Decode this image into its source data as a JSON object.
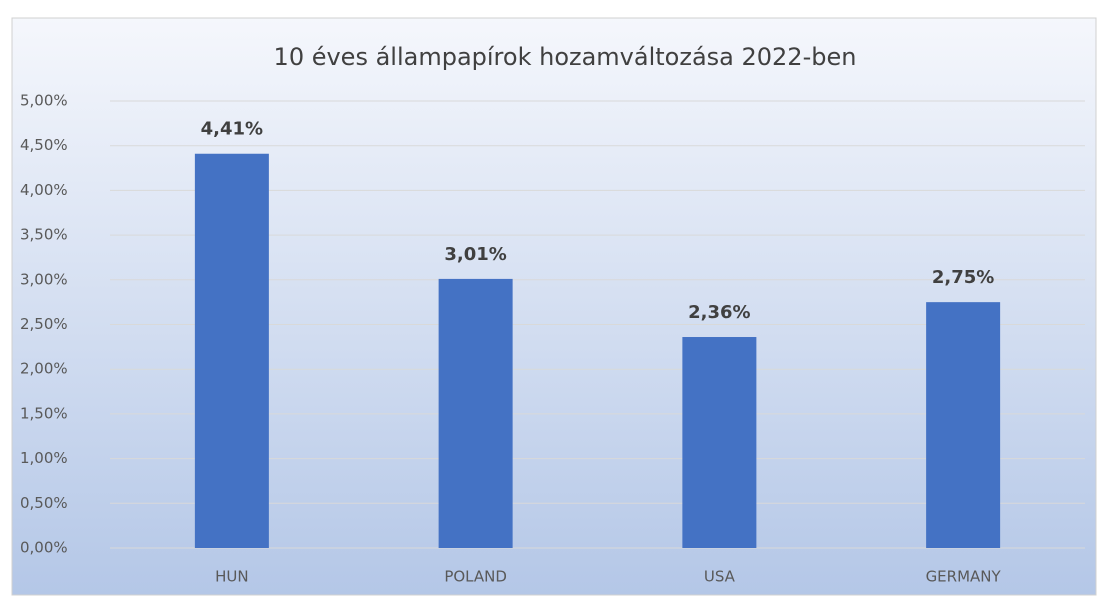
{
  "chart_data": {
    "type": "bar",
    "title": "10 éves állampapírok hozamváltozása 2022-ben",
    "categories": [
      "HUN",
      "POLAND",
      "USA",
      "GERMANY"
    ],
    "values": [
      4.41,
      3.01,
      2.36,
      2.75
    ],
    "value_labels": [
      "4,41%",
      "3,01%",
      "2,36%",
      "2,75%"
    ],
    "color": "#4472c4",
    "ylim": [
      0,
      5
    ],
    "yticks": [
      {
        "value": 0,
        "label": "0,00%"
      },
      {
        "value": 0.5,
        "label": "0,50%"
      },
      {
        "value": 1,
        "label": "1,00%"
      },
      {
        "value": 1.5,
        "label": "1,50%"
      },
      {
        "value": 2,
        "label": "2,00%"
      },
      {
        "value": 2.5,
        "label": "2,50%"
      },
      {
        "value": 3,
        "label": "3,00%"
      },
      {
        "value": 3.5,
        "label": "3,50%"
      },
      {
        "value": 4,
        "label": "4,00%"
      },
      {
        "value": 4.5,
        "label": "4,50%"
      },
      {
        "value": 5,
        "label": "5,00%"
      }
    ],
    "grid": true
  }
}
